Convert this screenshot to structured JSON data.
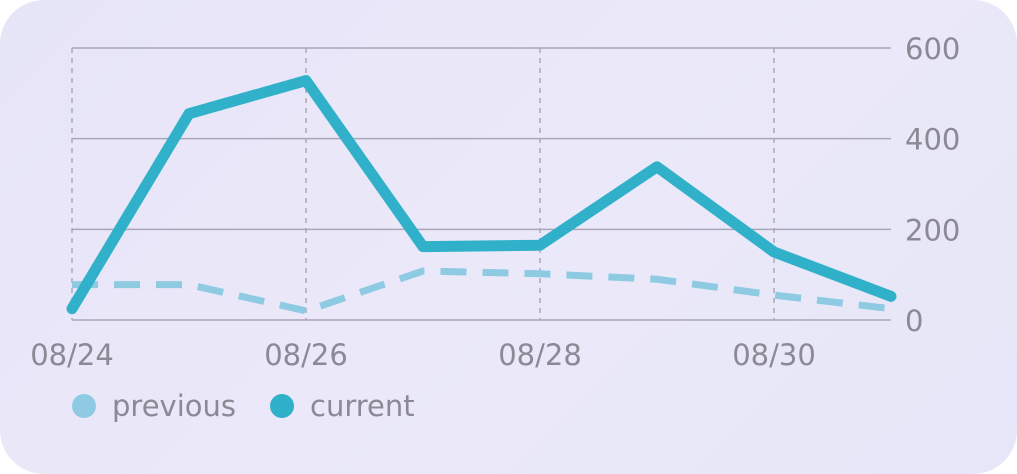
{
  "chart_data": {
    "type": "line",
    "x": [
      "08/24",
      "08/25",
      "08/26",
      "08/27",
      "08/28",
      "08/29",
      "08/30",
      "08/31"
    ],
    "x_tick_labels": [
      "08/24",
      "08/26",
      "08/28",
      "08/30"
    ],
    "y_ticks": [
      "0",
      "200",
      "400",
      "600"
    ],
    "ylim": [
      0,
      600
    ],
    "y_axis_side": "right",
    "grid": {
      "horizontal": "solid",
      "vertical": "dashed"
    },
    "legend_position": "bottom-left",
    "series": [
      {
        "name": "previous",
        "color": "#8ecbe2",
        "style": "dashed",
        "values": [
          78,
          78,
          20,
          108,
          102,
          90,
          55,
          25
        ]
      },
      {
        "name": "current",
        "color": "#31b1c9",
        "style": "solid",
        "values": [
          25,
          455,
          528,
          162,
          165,
          338,
          150,
          52
        ]
      }
    ]
  }
}
